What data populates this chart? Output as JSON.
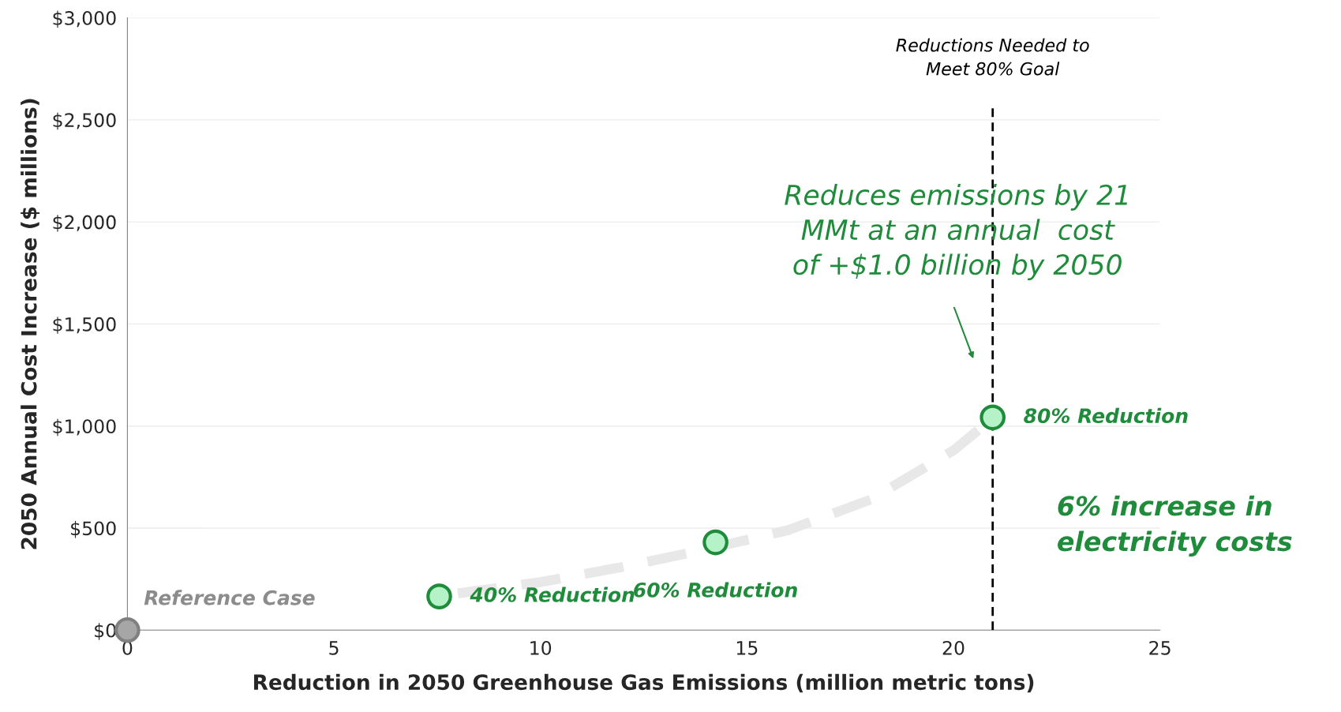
{
  "chart_data": {
    "type": "scatter",
    "xlabel": "Reduction in 2050 Greenhouse Gas Emissions (million metric tons)",
    "ylabel": "2050 Annual Cost Increase ($ millions)",
    "xlim": [
      0,
      25
    ],
    "xticks": [
      0,
      5,
      10,
      15,
      20,
      25
    ],
    "ylim": [
      0,
      3000
    ],
    "yticks": [
      {
        "value": 0,
        "label": "$0"
      },
      {
        "value": 500,
        "label": "$500"
      },
      {
        "value": 1000,
        "label": "$1,000"
      },
      {
        "value": 1500,
        "label": "$1,500"
      },
      {
        "value": 2000,
        "label": "$2,000"
      },
      {
        "value": 2500,
        "label": "$2,500"
      },
      {
        "value": 3000,
        "label": "$3,000"
      }
    ],
    "grid": "y",
    "series": [
      {
        "type": "line",
        "color": "#e8e8e8",
        "line_style": "dashed",
        "marker": "none",
        "x": [
          8,
          10,
          12,
          14,
          16,
          18,
          20,
          20.6
        ],
        "values": [
          180,
          235,
          310,
          395,
          490,
          640,
          880,
          980
        ]
      },
      {
        "marker": "circle",
        "colors": [
          "#a6a6a6",
          "#b6f2c8",
          "#b6f2c8",
          "#b6f2c8"
        ],
        "x": [
          0,
          7.55,
          14.24,
          20.95
        ],
        "values": [
          0,
          165,
          430,
          1042
        ]
      }
    ],
    "ref_lines": [
      {
        "axis": "x",
        "value": 20.95,
        "label": "Reductions Needed to\nMeet 80% Goal",
        "color": "#000000",
        "line_style": "dashed"
      }
    ],
    "annotations": [
      {
        "text": "Reference Case",
        "x": 0,
        "y": 0
      },
      {
        "text": "40% Reduction",
        "x": 7.55,
        "y": 165
      },
      {
        "text": "60% Reduction",
        "x": 14.24,
        "y": 430
      },
      {
        "text": "80% Reduction",
        "x": 20.95,
        "y": 1042
      },
      "Reduces emissions by 21\nMMt at an annual  cost\nof +$1.0 billion by 2050",
      "6% increase in\nelectricity costs"
    ]
  }
}
